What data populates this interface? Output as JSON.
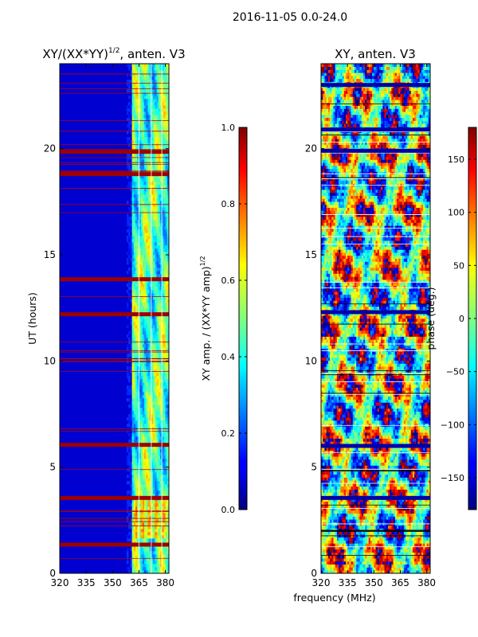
{
  "figure": {
    "suptitle": "2016-11-05 0.0-24.0"
  },
  "chart_data": [
    {
      "type": "heatmap",
      "title": "XY/(XX*YY)^{1/2}, anten. V3",
      "title_main": "XY/(XX*YY)",
      "title_exp": "1/2",
      "title_rest": ", anten. V3",
      "xlabel": "",
      "ylabel": "UT (hours)",
      "xlim": [
        320,
        382
      ],
      "ylim": [
        0,
        24
      ],
      "xticks": [
        320,
        335,
        350,
        365,
        380
      ],
      "yticks": [
        0,
        5,
        10,
        15,
        20
      ],
      "colorbar": {
        "label": "XY amp. / (XX*YY amp)^{1/2}",
        "label_main": "XY amp. / (XX*YY amp)",
        "label_exp": "1/2",
        "range": [
          0.0,
          1.0
        ],
        "ticks": [
          0.0,
          0.2,
          0.4,
          0.6,
          0.8,
          1.0
        ],
        "tick_labels": [
          "0.0",
          "0.2",
          "0.4",
          "0.6",
          "0.8",
          "1.0"
        ],
        "colormap": "jet"
      },
      "flagged_hours": [
        1.35,
        3.55,
        6.05,
        12.2,
        13.85,
        18.8,
        19.85
      ],
      "bright_band_mhz": [
        361,
        382
      ]
    },
    {
      "type": "heatmap",
      "title": "XY, anten. V3",
      "xlabel": "frequency (MHz)",
      "ylabel": "",
      "xlim": [
        320,
        382
      ],
      "ylim": [
        0,
        24
      ],
      "xticks": [
        320,
        335,
        350,
        365,
        380
      ],
      "yticks": [
        0,
        5,
        10,
        15,
        20
      ],
      "colorbar": {
        "label": "phase (deg.)",
        "range": [
          -180,
          180
        ],
        "ticks": [
          -150,
          -100,
          -50,
          0,
          50,
          100,
          150
        ],
        "tick_labels": [
          "−150",
          "−100",
          "−50",
          "0",
          "50",
          "100",
          "150"
        ],
        "colormap": "jet"
      },
      "flagged_hours": [
        3.55,
        6.0,
        12.3,
        19.9,
        20.9,
        23.0
      ]
    }
  ]
}
